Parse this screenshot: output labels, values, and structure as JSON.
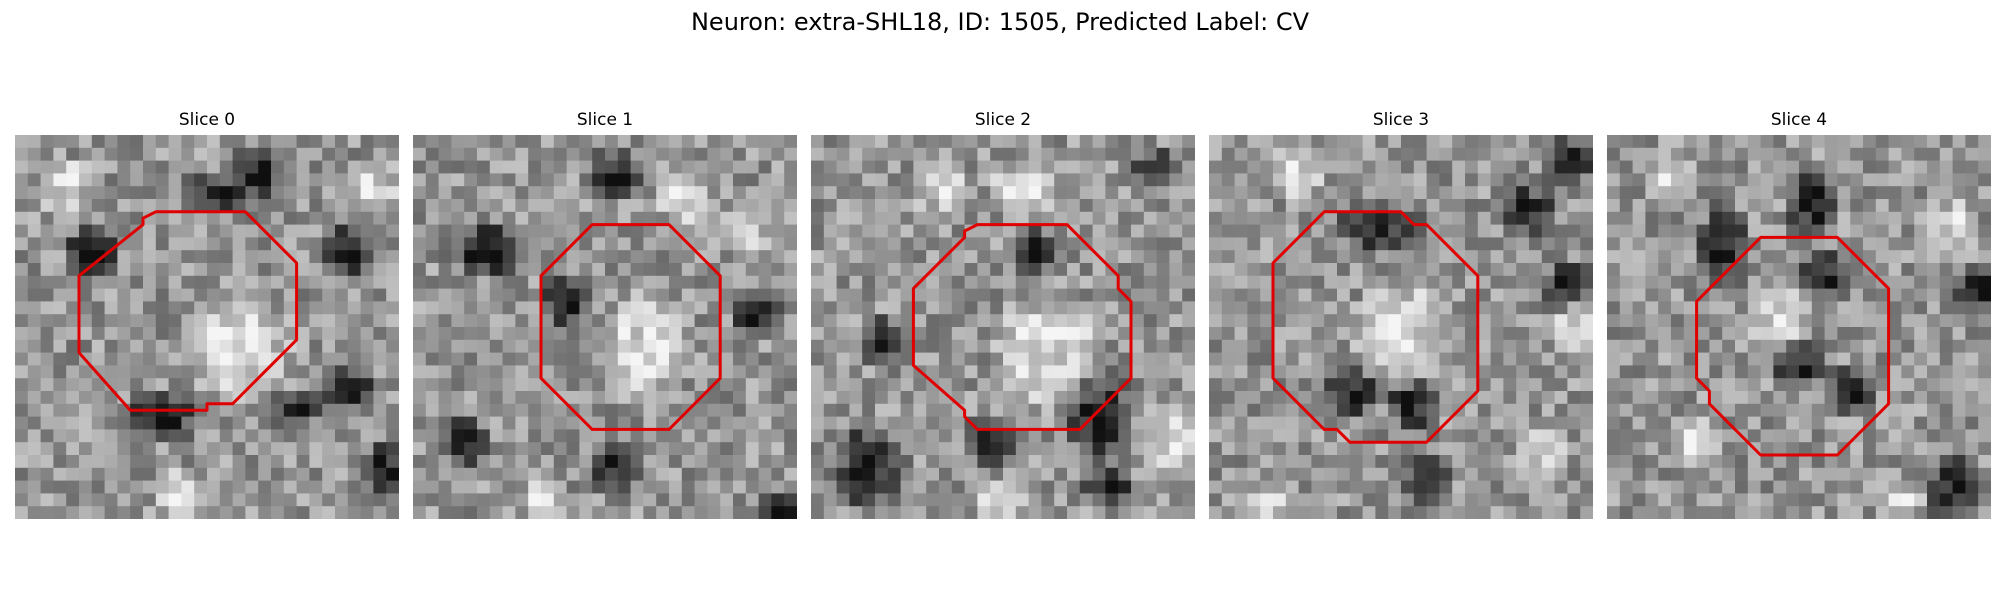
{
  "title": "Neuron: extra-SHL18, ID: 1505, Predicted Label: CV",
  "colors": {
    "contour": "#e00000",
    "background": "#ffffff"
  },
  "panels": [
    {
      "title": "Slice 0",
      "image": "grayscale-microscopy-slice-0"
    },
    {
      "title": "Slice 1",
      "image": "grayscale-microscopy-slice-1"
    },
    {
      "title": "Slice 2",
      "image": "grayscale-microscopy-slice-2"
    },
    {
      "title": "Slice 3",
      "image": "grayscale-microscopy-slice-3"
    },
    {
      "title": "Slice 4",
      "image": "grayscale-microscopy-slice-4"
    }
  ]
}
